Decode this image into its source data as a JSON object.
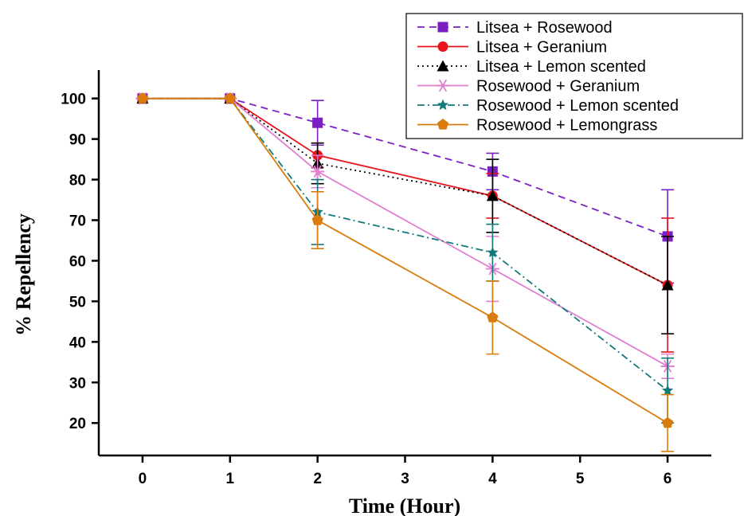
{
  "chart_data": {
    "type": "line",
    "title": "",
    "xlabel": "Time (Hour)",
    "ylabel": "% Repellency",
    "x": [
      0,
      1,
      2,
      4,
      6
    ],
    "x_ticks": [
      0,
      1,
      2,
      3,
      4,
      5,
      6
    ],
    "xlim": [
      -0.5,
      6.5
    ],
    "ylim": [
      12,
      107
    ],
    "y_ticks": [
      20,
      30,
      40,
      50,
      60,
      70,
      80,
      90,
      100
    ],
    "grid": false,
    "legend_position": "top-right",
    "series": [
      {
        "name": "Litsea + Rosewood",
        "values": [
          100,
          100,
          94,
          82,
          66
        ],
        "error": [
          0,
          0,
          5.5,
          4.5,
          11.5
        ],
        "color": "#7B1FC4",
        "marker": "square",
        "dash": "dashed"
      },
      {
        "name": "Litsea + Geranium",
        "values": [
          100,
          100,
          86,
          76,
          54
        ],
        "error": [
          0,
          0,
          3,
          5.5,
          16.5
        ],
        "color": "#E8141B",
        "marker": "circle",
        "dash": "solid"
      },
      {
        "name": "Litsea + Lemon scented",
        "values": [
          100,
          100,
          84,
          76,
          54
        ],
        "error": [
          0,
          0,
          5,
          9,
          12
        ],
        "color": "#000000",
        "marker": "triangle",
        "dash": "dotted"
      },
      {
        "name": "Rosewood + Geranium",
        "values": [
          100,
          100,
          82,
          58,
          34
        ],
        "error": [
          0,
          0,
          4,
          8,
          3
        ],
        "color": "#E07FCF",
        "marker": "asterisk",
        "dash": "solid"
      },
      {
        "name": "Rosewood + Lemon scented",
        "values": [
          100,
          100,
          72,
          62,
          28
        ],
        "error": [
          0,
          0,
          8,
          7,
          8
        ],
        "color": "#127A7A",
        "marker": "star",
        "dash": "dashdot"
      },
      {
        "name": "Rosewood + Lemongrass",
        "values": [
          100,
          100,
          70,
          46,
          20
        ],
        "error": [
          0,
          0,
          7,
          9,
          7
        ],
        "color": "#D97C0D",
        "marker": "pentagon",
        "dash": "solid"
      }
    ]
  }
}
